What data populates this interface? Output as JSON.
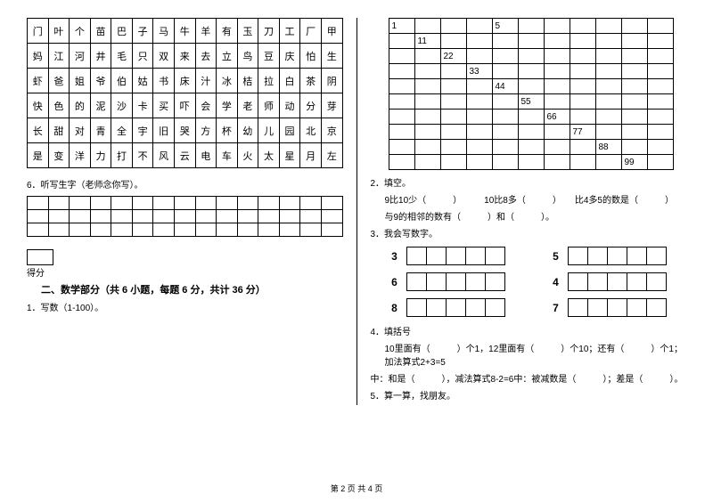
{
  "char_grid": {
    "rows": [
      [
        "门",
        "叶",
        "个",
        "苗",
        "巴",
        "子",
        "马",
        "牛",
        "羊",
        "有",
        "玉",
        "刀",
        "工",
        "厂",
        "甲"
      ],
      [
        "妈",
        "江",
        "河",
        "井",
        "毛",
        "只",
        "双",
        "来",
        "去",
        "立",
        "鸟",
        "豆",
        "庆",
        "怕",
        "生"
      ],
      [
        "虾",
        "爸",
        "姐",
        "爷",
        "伯",
        "姑",
        "书",
        "床",
        "汁",
        "冰",
        "桔",
        "拉",
        "白",
        "茶",
        "阴"
      ],
      [
        "快",
        "色",
        "的",
        "泥",
        "沙",
        "卡",
        "买",
        "吓",
        "会",
        "学",
        "老",
        "师",
        "动",
        "分",
        "芽"
      ],
      [
        "长",
        "甜",
        "对",
        "青",
        "全",
        "宇",
        "旧",
        "哭",
        "方",
        "杯",
        "幼",
        "儿",
        "园",
        "北",
        "京"
      ],
      [
        "是",
        "变",
        "洋",
        "力",
        "打",
        "不",
        "风",
        "云",
        "电",
        "车",
        "火",
        "太",
        "星",
        "月",
        "左"
      ]
    ]
  },
  "q6_label": "6．听写生字（老师念你写）。",
  "blank_grid": {
    "rows": 3,
    "cols": 15
  },
  "score_label": "得分",
  "section2_title": "二、数学部分（共 6 小题，每题 6 分，共计 36 分）",
  "q2_1_label": "1．写数（1-100）。",
  "num_grid": {
    "rows": 10,
    "cols": 11,
    "diagonal": [
      "1",
      "11",
      "22",
      "33",
      "44",
      "55",
      "66",
      "77",
      "88",
      "99"
    ],
    "extra": {
      "r": 0,
      "c": 4,
      "v": "5"
    }
  },
  "q2_2_label": "2．填空。",
  "q2_2_lines": [
    "9比10少（　　　）　　　10比8多（　　　）　　比4多5的数是（　　　）",
    "与9的相邻的数有（　　　）和（　　　）。"
  ],
  "q2_3_label": "3．我会写数字。",
  "fill_rows": [
    {
      "a": "3",
      "b": "5"
    },
    {
      "a": "6",
      "b": "4"
    },
    {
      "a": "8",
      "b": "7"
    }
  ],
  "fill_cols": 5,
  "q2_4_label": "4．填括号",
  "q2_4_lines": [
    "10里面有（　　　）个1，12里面有（　　　）个10；还有（　　　）个1；加法算式2+3=5",
    "中：和是（　　　），减法算式8-2=6中：被减数是（　　　）；差是（　　　）。"
  ],
  "q2_5_label": "5．算一算，找朋友。",
  "footer": "第 2 页  共 4 页"
}
